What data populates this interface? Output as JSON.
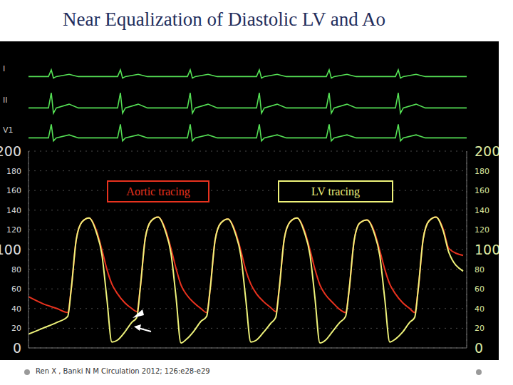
{
  "chart_data": [
    {
      "type": "line",
      "title": "Near Equalization of Diastolic LV and Ao",
      "source": "Ren X , Banki N M Circulation 2012; 126:e28-e29",
      "xlim": [
        0,
        615
      ],
      "xticks": [
        160,
        315,
        470
      ],
      "ylim": [
        0,
        200
      ],
      "yticks": [
        0,
        20,
        40,
        60,
        80,
        100,
        120,
        140,
        160,
        180,
        200
      ],
      "y2lim": [
        0,
        200
      ],
      "y2ticks": [
        0,
        20,
        40,
        60,
        80,
        100,
        120,
        140,
        160,
        180,
        200
      ],
      "grid": true,
      "tick_labels": "y",
      "x": [
        0,
        20,
        40,
        55,
        60,
        67,
        75,
        85,
        95,
        103,
        110,
        117,
        125,
        135,
        145,
        152,
        157,
        164,
        172,
        182,
        192,
        200,
        207,
        214,
        222,
        232,
        242,
        250,
        255,
        262,
        270,
        280,
        290,
        298,
        305,
        312,
        320,
        330,
        340,
        347,
        352,
        359,
        367,
        377,
        387,
        395,
        402,
        409,
        417,
        427,
        437,
        445,
        450,
        457,
        465,
        475,
        485,
        493,
        500,
        507,
        515,
        525,
        535,
        542,
        547,
        554,
        562,
        572,
        582,
        590,
        610
      ],
      "series": [
        {
          "name": "Aortic tracing",
          "color": "#e8321e",
          "values": [
            52,
            45,
            40,
            36,
            60,
            110,
            128,
            132,
            120,
            100,
            80,
            65,
            55,
            46,
            40,
            37,
            62,
            112,
            129,
            133,
            121,
            101,
            81,
            64,
            54,
            46,
            40,
            36,
            60,
            110,
            127,
            131,
            119,
            99,
            79,
            65,
            55,
            47,
            41,
            37,
            61,
            111,
            128,
            132,
            120,
            100,
            80,
            64,
            54,
            46,
            39,
            36,
            59,
            109,
            127,
            130,
            119,
            99,
            80,
            65,
            55,
            46,
            40,
            36,
            60,
            111,
            129,
            133,
            121,
            101,
            94
          ]
        },
        {
          "name": "LV tracing",
          "color": "#eef27a",
          "axis": "y2",
          "values": [
            14,
            20,
            26,
            32,
            60,
            110,
            128,
            132,
            118,
            95,
            50,
            6,
            8,
            16,
            26,
            31,
            62,
            112,
            129,
            133,
            119,
            96,
            52,
            5,
            9,
            17,
            27,
            32,
            60,
            110,
            127,
            131,
            117,
            94,
            49,
            6,
            8,
            16,
            25,
            31,
            61,
            111,
            128,
            132,
            118,
            95,
            51,
            5,
            8,
            17,
            26,
            32,
            59,
            109,
            127,
            130,
            117,
            94,
            50,
            6,
            9,
            16,
            26,
            31,
            60,
            111,
            129,
            133,
            119,
            97,
            78
          ]
        }
      ]
    },
    {
      "type": "line",
      "tick_labels": false,
      "xlim": [
        0,
        615
      ],
      "ylim": [
        -0.5,
        1.2
      ],
      "x": [
        0,
        28,
        32,
        35,
        39,
        57,
        70,
        125,
        129,
        132,
        136,
        154,
        167,
        223,
        227,
        230,
        234,
        252,
        265,
        320,
        324,
        327,
        331,
        349,
        362,
        418,
        422,
        425,
        429,
        447,
        460,
        515,
        519,
        522,
        526,
        544,
        557,
        615
      ],
      "series": [
        {
          "name": "I",
          "color": "#55e055",
          "values": [
            0,
            0,
            0.45,
            -0.1,
            0,
            0.15,
            0,
            0,
            0.45,
            -0.1,
            0,
            0.15,
            0,
            0,
            0.45,
            -0.1,
            0,
            0.15,
            0,
            0,
            0.45,
            -0.1,
            0,
            0.15,
            0,
            0,
            0.45,
            -0.1,
            0,
            0.15,
            0,
            0,
            0.45,
            -0.1,
            0,
            0.15,
            0,
            0
          ]
        },
        {
          "name": "II",
          "color": "#55e055",
          "values": [
            0,
            0,
            1.0,
            -0.35,
            0,
            0.25,
            0,
            0,
            1.0,
            -0.35,
            0,
            0.25,
            0,
            0,
            1.0,
            -0.35,
            0,
            0.25,
            0,
            0,
            1.0,
            -0.35,
            0,
            0.25,
            0,
            0,
            1.0,
            -0.35,
            0,
            0.25,
            0,
            0,
            1.0,
            -0.35,
            0,
            0.25,
            0,
            0
          ]
        },
        {
          "name": "V1",
          "color": "#55e055",
          "values": [
            0,
            0,
            0.9,
            -0.2,
            0,
            0.2,
            0,
            0,
            0.9,
            -0.2,
            0,
            0.2,
            0,
            0,
            0.9,
            -0.2,
            0,
            0.2,
            0,
            0,
            0.9,
            -0.2,
            0,
            0.2,
            0,
            0,
            0.9,
            -0.2,
            0,
            0.2,
            0,
            0,
            0.9,
            -0.2,
            0,
            0.2,
            0,
            0
          ]
        }
      ]
    }
  ]
}
